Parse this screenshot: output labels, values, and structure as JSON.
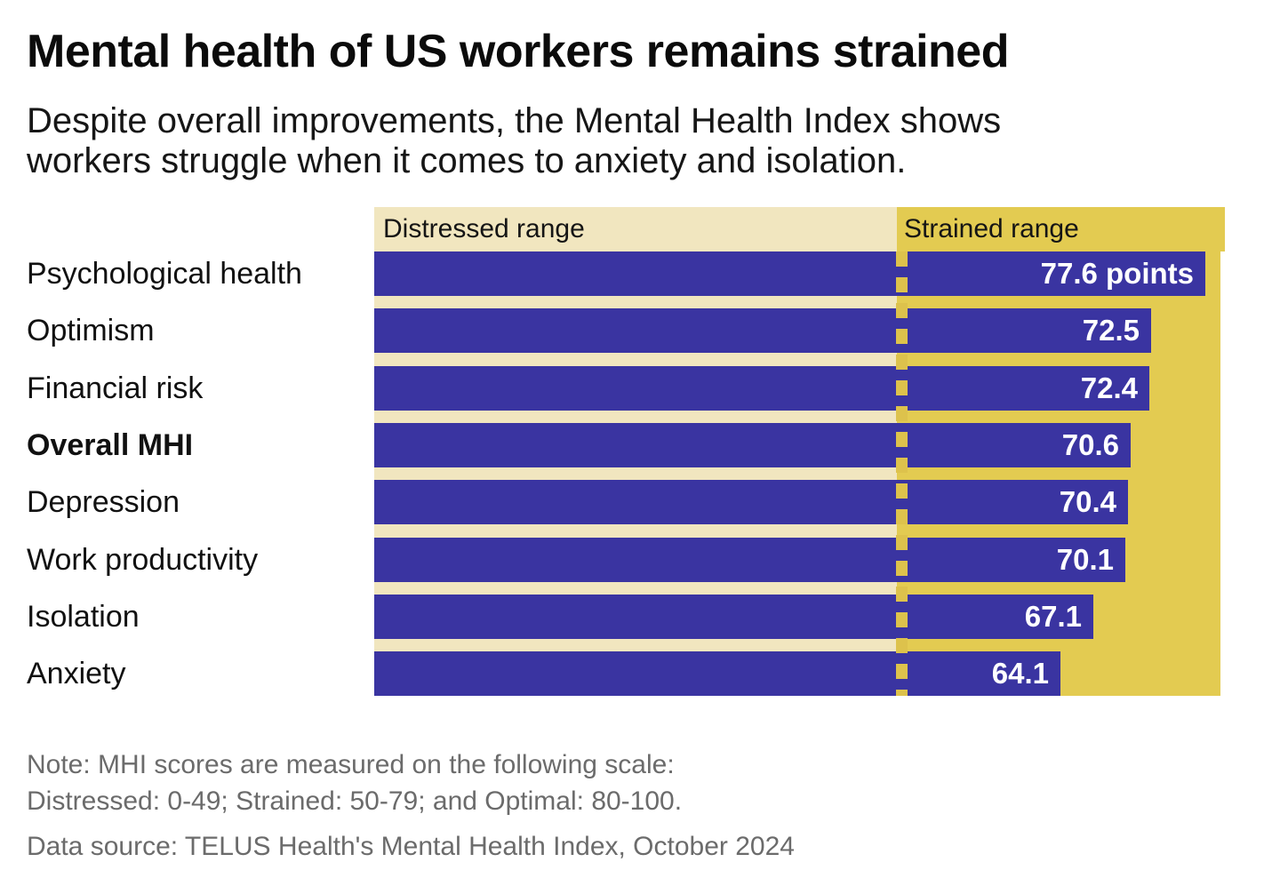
{
  "header": {
    "title": "Mental health of US workers remains strained",
    "subtitle_line1": "Despite overall improvements, the Mental Health Index shows",
    "subtitle_line2": "workers struggle when it comes to anxiety and isolation."
  },
  "chart_data": {
    "type": "bar",
    "orientation": "horizontal",
    "title": "Mental health of US workers remains strained",
    "categories": [
      "Psychological health",
      "Optimism",
      "Financial risk",
      "Overall MHI",
      "Depression",
      "Work productivity",
      "Isolation",
      "Anxiety"
    ],
    "values": [
      77.6,
      72.5,
      72.4,
      70.6,
      70.4,
      70.1,
      67.1,
      64.1
    ],
    "value_labels": [
      "77.6 points",
      "72.5",
      "72.4",
      "70.6",
      "70.4",
      "70.1",
      "67.1",
      "64.1"
    ],
    "value_unit": "points",
    "emphasized_category": "Overall MHI",
    "x_range": [
      0,
      79
    ],
    "threshold": 49,
    "grid": false,
    "legend_position": "top-bands",
    "bands": [
      {
        "label": "Distressed range",
        "range": [
          0,
          49
        ],
        "color": "#f1e6bf"
      },
      {
        "label": "Strained range",
        "range": [
          49,
          79
        ],
        "color": "#e3cb51"
      }
    ],
    "bar_color": "#3a34a1",
    "dash_color": "#ddc24c",
    "value_text_color": "#ffffff"
  },
  "footer": {
    "note_line1": "Note: MHI scores are measured on the following scale:",
    "note_line2": "Distressed: 0-49; Strained: 50-79; and Optimal: 80-100.",
    "source": "Data source: TELUS Health's Mental Health Index, October 2024"
  }
}
